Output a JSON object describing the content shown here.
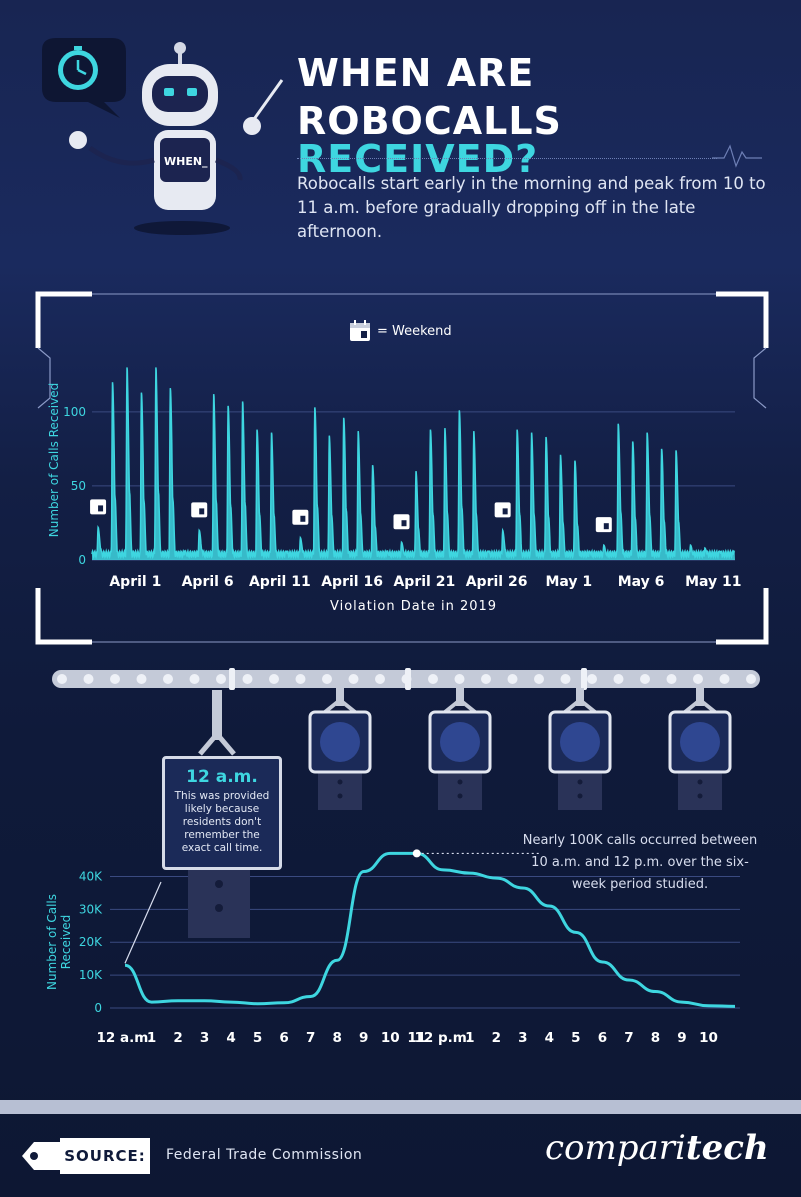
{
  "header": {
    "title_line1": "WHEN ARE",
    "title_line2_plain": "ROBOCALLS ",
    "title_line2_highlight": "RECEIVED?",
    "subtitle": "Robocalls start early in the morning and peak from 10 to 11 a.m. before gradually dropping off in the late afternoon.",
    "robot_screen_text": "WHEN_"
  },
  "colors": {
    "accent": "#3ed6e0",
    "background": "#131f45",
    "line": "#3ed6e0"
  },
  "chart_data": [
    {
      "type": "area",
      "legend": {
        "label": "= Weekend",
        "icon": "calendar-icon"
      },
      "ylabel": "Number of Calls Received",
      "xlabel": "Violation Date in 2019",
      "ylim": [
        0,
        135
      ],
      "y_ticks": [
        "0",
        "50",
        "100"
      ],
      "y_tick_values": [
        0,
        50,
        100
      ],
      "x_tick_labels": [
        "April 1",
        "April 6",
        "April 11",
        "April 16",
        "April 21",
        "April 26",
        "May 1",
        "May 6",
        "May 11"
      ],
      "x_tick_day_index": [
        3,
        8,
        13,
        18,
        23,
        28,
        33,
        38,
        43
      ],
      "x_range_days": [
        0,
        44.5
      ],
      "daily_peaks": [
        {
          "day": 0,
          "value": 22,
          "weekend": true
        },
        {
          "day": 1,
          "value": 120
        },
        {
          "day": 2,
          "value": 130
        },
        {
          "day": 3,
          "value": 113
        },
        {
          "day": 4,
          "value": 130
        },
        {
          "day": 5,
          "value": 116
        },
        {
          "day": 7,
          "value": 20,
          "weekend": true
        },
        {
          "day": 8,
          "value": 112
        },
        {
          "day": 9,
          "value": 104
        },
        {
          "day": 10,
          "value": 107
        },
        {
          "day": 11,
          "value": 88
        },
        {
          "day": 12,
          "value": 86
        },
        {
          "day": 14,
          "value": 15,
          "weekend": true
        },
        {
          "day": 15,
          "value": 103
        },
        {
          "day": 16,
          "value": 84
        },
        {
          "day": 17,
          "value": 96
        },
        {
          "day": 18,
          "value": 87
        },
        {
          "day": 19,
          "value": 64
        },
        {
          "day": 21,
          "value": 12,
          "weekend": true
        },
        {
          "day": 22,
          "value": 60
        },
        {
          "day": 23,
          "value": 88
        },
        {
          "day": 24,
          "value": 89
        },
        {
          "day": 25,
          "value": 101
        },
        {
          "day": 26,
          "value": 87
        },
        {
          "day": 28,
          "value": 20,
          "weekend": true
        },
        {
          "day": 29,
          "value": 88
        },
        {
          "day": 30,
          "value": 86
        },
        {
          "day": 31,
          "value": 83
        },
        {
          "day": 32,
          "value": 71
        },
        {
          "day": 33,
          "value": 67
        },
        {
          "day": 35,
          "value": 10,
          "weekend": true
        },
        {
          "day": 36,
          "value": 92
        },
        {
          "day": 37,
          "value": 80
        },
        {
          "day": 38,
          "value": 86
        },
        {
          "day": 39,
          "value": 75
        },
        {
          "day": 40,
          "value": 74
        },
        {
          "day": 41,
          "value": 10
        },
        {
          "day": 42,
          "value": 8
        }
      ],
      "weekend_markers_day": [
        0,
        7,
        14,
        21,
        28,
        35
      ]
    },
    {
      "type": "line",
      "ylabel": "Number of Calls Received",
      "xlabel": "",
      "ylim": [
        0,
        45000
      ],
      "y_ticks": [
        "0",
        "10K",
        "20K",
        "30K",
        "40K"
      ],
      "y_tick_values": [
        0,
        10000,
        20000,
        30000,
        40000
      ],
      "categories": [
        "12 a.m.",
        "1",
        "2",
        "3",
        "4",
        "5",
        "6",
        "7",
        "8",
        "9",
        "10",
        "11",
        "12 p.m.",
        "1",
        "2",
        "3",
        "4",
        "5",
        "6",
        "7",
        "8",
        "9",
        "10",
        ""
      ],
      "values": [
        13000,
        1800,
        2200,
        2200,
        1800,
        1300,
        1600,
        3500,
        14500,
        41500,
        47000,
        47000,
        42000,
        41000,
        39500,
        36500,
        31000,
        23000,
        14000,
        8500,
        5000,
        1800,
        700,
        500
      ],
      "popup": {
        "title": "12 a.m.",
        "body": "This was provided likely because residents don't remember the exact call time."
      },
      "annotation": "Nearly 100K calls occurred between 10 a.m. and 12 p.m. over the six-week period studied."
    }
  ],
  "footer": {
    "source_label": "SOURCE:",
    "source_text": "Federal Trade Commission",
    "brand_plain": "compari",
    "brand_bold": "tech"
  }
}
